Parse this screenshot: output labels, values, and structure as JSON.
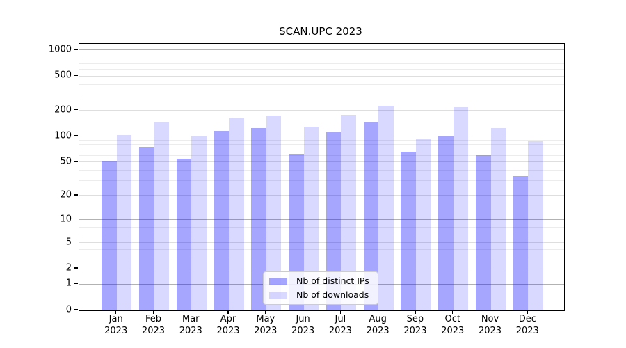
{
  "title": "SCAN.UPC 2023",
  "chart_data": {
    "type": "bar",
    "title": "SCAN.UPC 2023",
    "categories": [
      "Jan 2023",
      "Feb 2023",
      "Mar 2023",
      "Apr 2023",
      "May 2023",
      "Jun 2023",
      "Jul 2023",
      "Aug 2023",
      "Sep 2023",
      "Oct 2023",
      "Nov 2023",
      "Dec 2023"
    ],
    "months": [
      "Jan",
      "Feb",
      "Mar",
      "Apr",
      "May",
      "Jun",
      "Jul",
      "Aug",
      "Sep",
      "Oct",
      "Nov",
      "Dec"
    ],
    "year": "2023",
    "series": [
      {
        "name": "Nb of distinct IPs",
        "color": "rgba(0,0,255,0.35)",
        "values": [
          52,
          75,
          55,
          117,
          124,
          62,
          114,
          144,
          66,
          102,
          60,
          34
        ]
      },
      {
        "name": "Nb of downloads",
        "color": "rgba(0,0,255,0.15)",
        "values": [
          104,
          145,
          102,
          162,
          176,
          130,
          179,
          228,
          93,
          218,
          126,
          88
        ]
      }
    ],
    "xlabel": "",
    "ylabel": "",
    "y_scale": "log10(value+1)",
    "ylim": [
      0,
      1190
    ],
    "y_tick_labels": [
      "0",
      "1",
      "2",
      "5",
      "10",
      "20",
      "50",
      "100",
      "200",
      "500",
      "1000"
    ],
    "y_major_gridlines": [
      1,
      10,
      100,
      1000
    ],
    "y_labeled_minor_gridlines": [
      2,
      5,
      20,
      50,
      200,
      500
    ],
    "y_minor_gridlines": [
      3,
      4,
      6,
      7,
      8,
      9,
      30,
      40,
      60,
      70,
      80,
      90,
      300,
      400,
      600,
      700,
      800,
      900
    ],
    "grid": true,
    "legend_position": "lower center",
    "colors": {
      "major_grid": "#b2b2b2",
      "labeled_minor_grid": "#dedede",
      "minor_grid": "#ececec",
      "axis": "#000000",
      "background": "#ffffff"
    }
  }
}
